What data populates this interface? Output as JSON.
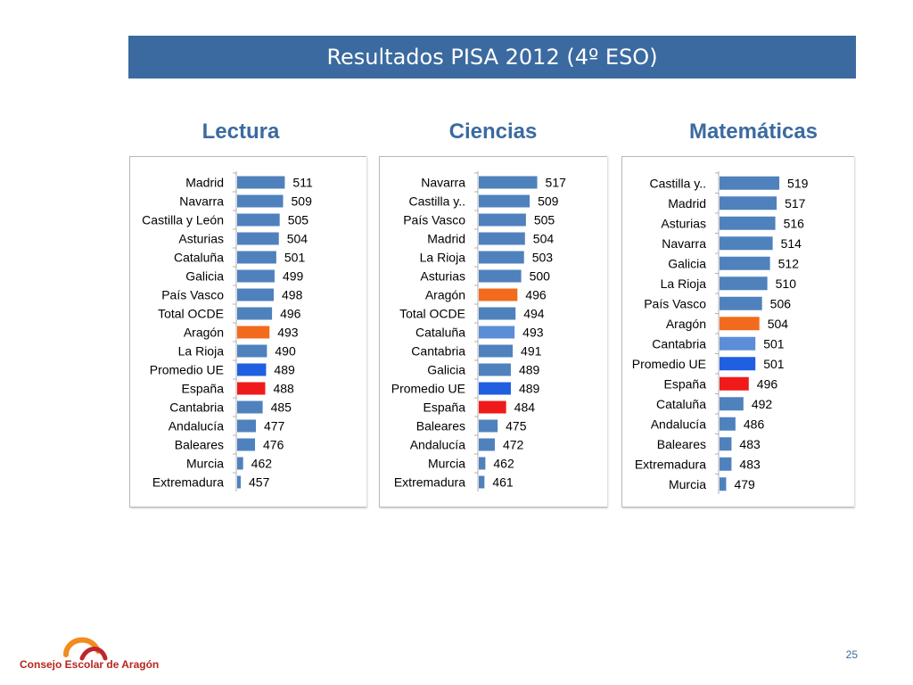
{
  "header": {
    "title": "Resultados PISA 2012   (4º ESO)"
  },
  "footer": {
    "logo_text": "Consejo Escolar de Aragón",
    "page_number": "25"
  },
  "colors": {
    "default": "#4f81bd",
    "aragon": "#f26b1d",
    "promedio_ue": "#1f5fe0",
    "espana": "#f01a1a",
    "total_ocde": "#4f81bd",
    "banner": "#3b6aa0",
    "logo_orange": "#f28c1e",
    "logo_red": "#c0262c"
  },
  "chart_data": [
    {
      "type": "bar",
      "orientation": "horizontal",
      "title": "Lectura",
      "categories": [
        "Madrid",
        "Navarra",
        "Castilla y León",
        "Asturias",
        "Cataluña",
        "Galicia",
        "País Vasco",
        "Total OCDE",
        "Aragón",
        "La Rioja",
        "Promedio UE",
        "España",
        "Cantabria",
        "Andalucía",
        "Baleares",
        "Murcia",
        "Extremadura"
      ],
      "values": [
        511,
        509,
        505,
        504,
        501,
        499,
        498,
        496,
        493,
        490,
        489,
        488,
        485,
        477,
        476,
        462,
        457
      ],
      "highlight": {
        "Aragón": "#f26b1d",
        "Promedio UE": "#1f5fe0",
        "España": "#f01a1a"
      },
      "xlim": [
        455,
        520
      ]
    },
    {
      "type": "bar",
      "orientation": "horizontal",
      "title": "Ciencias",
      "categories": [
        "Navarra",
        "Castilla y..",
        "País Vasco",
        "Madrid",
        "La Rioja",
        "Asturias",
        "Aragón",
        "Total OCDE",
        "Cataluña",
        "Cantabria",
        "Galicia",
        "Promedio UE",
        "España",
        "Baleares",
        "Andalucía",
        "Murcia",
        "Extremadura"
      ],
      "values": [
        517,
        509,
        505,
        504,
        503,
        500,
        496,
        494,
        493,
        491,
        489,
        489,
        484,
        475,
        472,
        462,
        461
      ],
      "highlight": {
        "Aragón": "#f26b1d",
        "Promedio UE": "#1f5fe0",
        "España": "#f01a1a",
        "Cataluña": "#5b8ed6"
      },
      "xlim": [
        455,
        525
      ]
    },
    {
      "type": "bar",
      "orientation": "horizontal",
      "title": "Matemáticas",
      "categories": [
        "Castilla y..",
        "Madrid",
        "Asturias",
        "Navarra",
        "Galicia",
        "La Rioja",
        "País Vasco",
        "Aragón",
        "Cantabria",
        "Promedio UE",
        "España",
        "Cataluña",
        "Andalucía",
        "Baleares",
        "Extremadura",
        "Murcia"
      ],
      "values": [
        519,
        517,
        516,
        514,
        512,
        510,
        506,
        504,
        501,
        501,
        496,
        492,
        486,
        483,
        483,
        479
      ],
      "highlight": {
        "Aragón": "#f26b1d",
        "Promedio UE": "#1f5fe0",
        "España": "#f01a1a",
        "Cantabria": "#5b8ed6"
      },
      "xlim": [
        474,
        525
      ]
    }
  ]
}
